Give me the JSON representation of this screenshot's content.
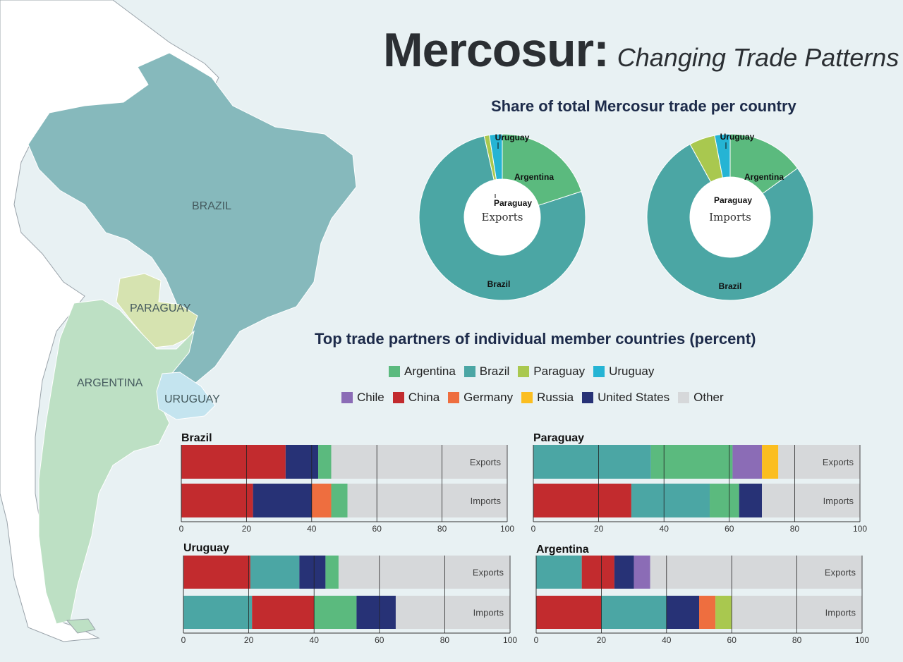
{
  "title": {
    "main": "Mercosur:",
    "subtitle": "Changing Trade Patterns"
  },
  "map": {
    "labels": {
      "brazil": "BRAZIL",
      "paraguay": "PARAGUAY",
      "argentina": "ARGENTINA",
      "uruguay": "URUGUAY"
    },
    "colors": {
      "brazil": "#86b9bc",
      "paraguay": "#d6e3b0",
      "argentina": "#bde0c4",
      "uruguay": "#c4e4ef",
      "other": "#ffffff",
      "ocean": "#e8f1f3"
    }
  },
  "colors": {
    "Argentina": "#5bba7e",
    "Brazil": "#4ba6a4",
    "Paraguay": "#a9c84f",
    "Uruguay": "#25b4d4",
    "Chile": "#8b6cb6",
    "China": "#c22b2e",
    "Germany": "#ee6e3f",
    "Russia": "#fbbe20",
    "United States": "#273276",
    "Other": "#d6d8da"
  },
  "donut_heading": "Share of total Mercosur trade per country",
  "bars_heading": "Top trade partners of individual member countries (percent)",
  "legend_row1": [
    "Argentina",
    "Brazil",
    "Paraguay",
    "Uruguay"
  ],
  "legend_row2": [
    "Chile",
    "China",
    "Germany",
    "Russia",
    "United States",
    "Other"
  ],
  "chart_data": [
    {
      "type": "pie",
      "title": "Exports",
      "labels": [
        "Argentina",
        "Brazil",
        "Paraguay",
        "Uruguay"
      ],
      "values": [
        20,
        76.5,
        1,
        2.5
      ]
    },
    {
      "type": "pie",
      "title": "Imports",
      "labels": [
        "Argentina",
        "Brazil",
        "Paraguay",
        "Uruguay"
      ],
      "values": [
        15,
        77,
        5,
        3
      ]
    },
    {
      "type": "bar",
      "orientation": "horizontal-stacked",
      "title": "Brazil",
      "categories": [
        "Exports",
        "Imports"
      ],
      "xlim": [
        0,
        100
      ],
      "xticks": [
        0,
        20,
        40,
        60,
        80,
        100
      ],
      "series": [
        {
          "name": "China",
          "values": [
            32,
            22
          ]
        },
        {
          "name": "United States",
          "values": [
            10,
            18
          ]
        },
        {
          "name": "Germany",
          "values": [
            0,
            6
          ]
        },
        {
          "name": "Argentina",
          "values": [
            4,
            5
          ]
        },
        {
          "name": "Other",
          "values": [
            54,
            49
          ]
        }
      ]
    },
    {
      "type": "bar",
      "orientation": "horizontal-stacked",
      "title": "Paraguay",
      "categories": [
        "Exports",
        "Imports"
      ],
      "xlim": [
        0,
        100
      ],
      "xticks": [
        0,
        20,
        40,
        60,
        80,
        100
      ],
      "series": [
        {
          "name": "China",
          "values": [
            0,
            30
          ]
        },
        {
          "name": "Brazil",
          "values": [
            36,
            24
          ]
        },
        {
          "name": "Argentina",
          "values": [
            25,
            9
          ]
        },
        {
          "name": "Chile",
          "values": [
            9,
            0
          ]
        },
        {
          "name": "Russia",
          "values": [
            5,
            0
          ]
        },
        {
          "name": "United States",
          "values": [
            0,
            7
          ]
        },
        {
          "name": "Other",
          "values": [
            25,
            30
          ]
        }
      ]
    },
    {
      "type": "bar",
      "orientation": "horizontal-stacked",
      "title": "Uruguay",
      "categories": [
        "Exports",
        "Imports"
      ],
      "xlim": [
        0,
        100
      ],
      "xticks": [
        0,
        20,
        40,
        60,
        80,
        100
      ],
      "series": [
        {
          "name": "Brazil",
          "values": [
            0,
            21
          ]
        },
        {
          "name": "China",
          "values": [
            20.5,
            19
          ]
        },
        {
          "name": "Brazil",
          "values": [
            15,
            0
          ]
        },
        {
          "name": "Argentina",
          "values": [
            0,
            13
          ]
        },
        {
          "name": "United States",
          "values": [
            8,
            12
          ]
        },
        {
          "name": "Argentina",
          "values": [
            4,
            0
          ]
        },
        {
          "name": "Other",
          "values": [
            52.5,
            35
          ]
        }
      ]
    },
    {
      "type": "bar",
      "orientation": "horizontal-stacked",
      "title": "Argentina",
      "categories": [
        "Exports",
        "Imports"
      ],
      "xlim": [
        0,
        100
      ],
      "xticks": [
        0,
        20,
        40,
        60,
        80,
        100
      ],
      "series": [
        {
          "name": "Brazil",
          "values": [
            14,
            0
          ]
        },
        {
          "name": "China",
          "values": [
            10,
            20
          ]
        },
        {
          "name": "Brazil",
          "values": [
            0,
            20
          ]
        },
        {
          "name": "United States",
          "values": [
            6,
            10
          ]
        },
        {
          "name": "Chile",
          "values": [
            5,
            0
          ]
        },
        {
          "name": "Germany",
          "values": [
            0,
            5
          ]
        },
        {
          "name": "Paraguay",
          "values": [
            0,
            5
          ]
        },
        {
          "name": "Other",
          "values": [
            65,
            40
          ]
        }
      ]
    }
  ]
}
